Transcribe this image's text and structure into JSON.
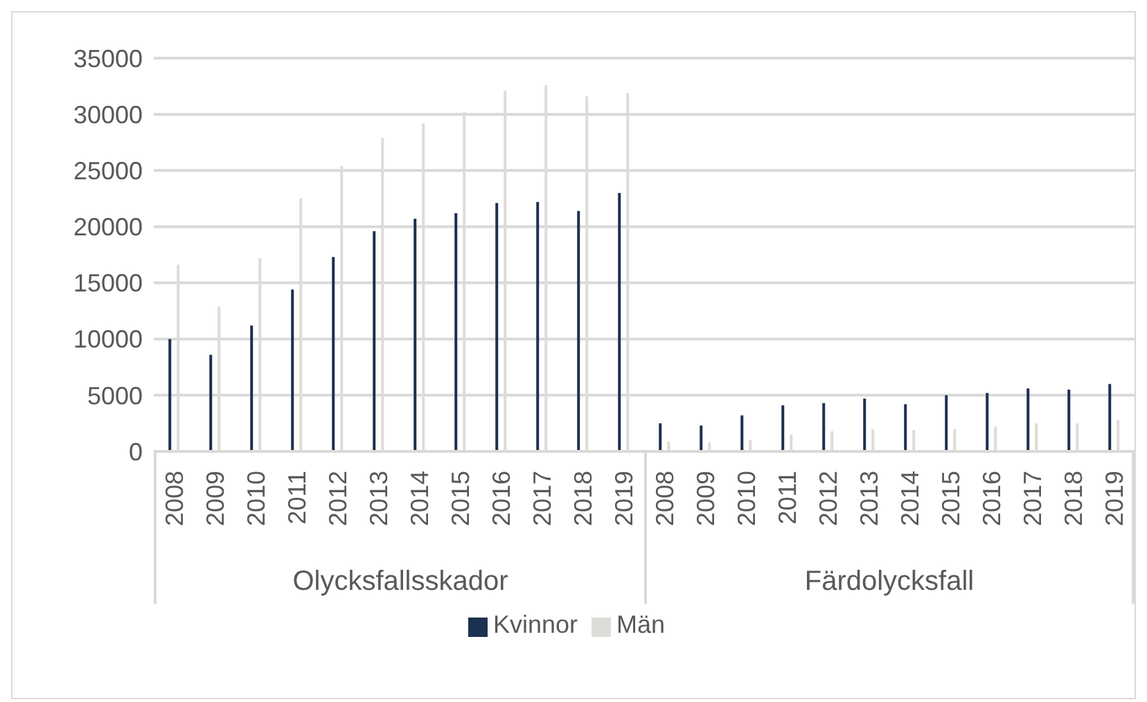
{
  "chart_data": {
    "type": "bar",
    "categories": [
      "2008",
      "2009",
      "2010",
      "2011",
      "2012",
      "2013",
      "2014",
      "2015",
      "2016",
      "2017",
      "2018",
      "2019",
      "2008",
      "2009",
      "2010",
      "2011",
      "2012",
      "2013",
      "2014",
      "2015",
      "2016",
      "2017",
      "2018",
      "2019"
    ],
    "series": [
      {
        "name": "Kvinnor",
        "color": "#1c3050",
        "values": [
          10000,
          8600,
          11200,
          14400,
          17300,
          19600,
          20700,
          21200,
          22100,
          22200,
          21400,
          23000,
          2500,
          2300,
          3200,
          4100,
          4300,
          4700,
          4200,
          5000,
          5200,
          5600,
          5500,
          6000
        ]
      },
      {
        "name": "Män",
        "color": "#dddcd8",
        "values": [
          16600,
          12900,
          17200,
          22500,
          25400,
          27900,
          29200,
          30200,
          32100,
          32600,
          31600,
          31900,
          900,
          800,
          1000,
          1500,
          1800,
          2000,
          1900,
          2000,
          2200,
          2500,
          2500,
          2800
        ]
      }
    ],
    "annotations": [
      "Olycksfallsskador",
      "Färdolycksfall"
    ],
    "ylim": [
      0,
      35000
    ],
    "yticks": [
      0,
      5000,
      10000,
      15000,
      20000,
      25000,
      30000,
      35000
    ],
    "grid": "y",
    "legend": "bottom"
  }
}
